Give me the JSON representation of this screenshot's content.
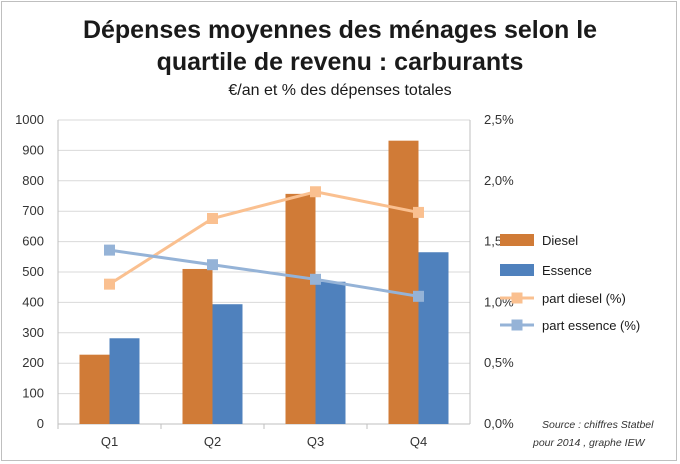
{
  "chart_data": {
    "type": "bar",
    "title_line1": "Dépenses moyennes des ménages selon le",
    "title_line2": "quartile de revenu : carburants",
    "subtitle": "€/an et % des dépenses totales",
    "categories": [
      "Q1",
      "Q2",
      "Q3",
      "Q4"
    ],
    "y_left_ticks": [
      "0",
      "100",
      "200",
      "300",
      "400",
      "500",
      "600",
      "700",
      "800",
      "900",
      "1000"
    ],
    "y_right_ticks": [
      "0,0%",
      "0,5%",
      "1,0%",
      "1,5%",
      "2,0%",
      "2,5%"
    ],
    "ylim_left": [
      0,
      1000
    ],
    "ylim_right": [
      0,
      2.5
    ],
    "bar_series": [
      {
        "name": "Diesel",
        "values": [
          228,
          510,
          757,
          932
        ],
        "color": "#d07b37"
      },
      {
        "name": "Essence",
        "values": [
          282,
          394,
          468,
          565
        ],
        "color": "#4f81bd"
      }
    ],
    "line_series": [
      {
        "name": "part diesel (%)",
        "values": [
          1.15,
          1.69,
          1.91,
          1.74
        ],
        "color": "#fac090"
      },
      {
        "name": "part essence (%)",
        "values": [
          1.43,
          1.31,
          1.19,
          1.05
        ],
        "color": "#95b3d7"
      }
    ],
    "source_line1": "Source : chiffres Statbel",
    "source_line2": "pour 2014 ,  graphe IEW"
  }
}
